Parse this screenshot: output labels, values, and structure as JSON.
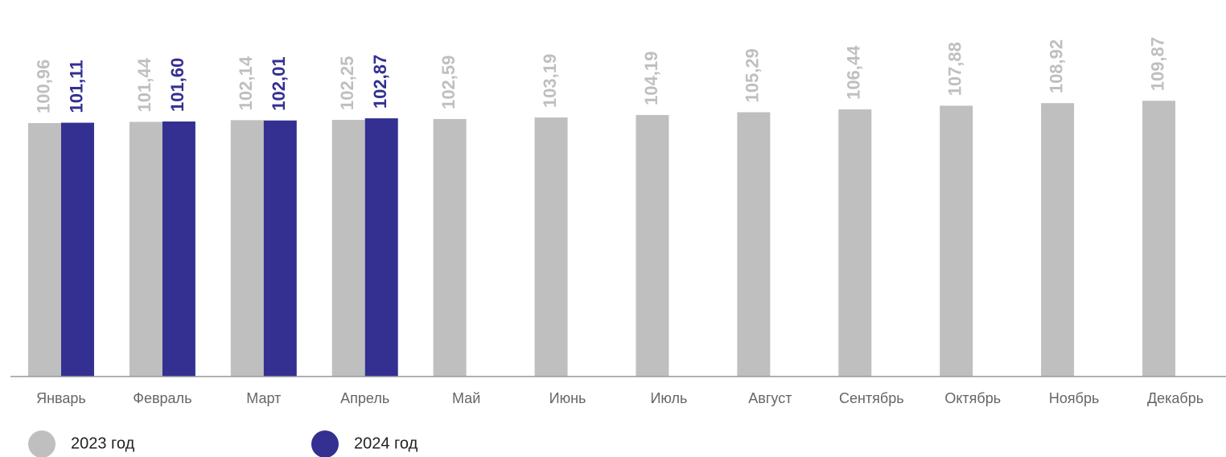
{
  "chart_data": {
    "type": "bar",
    "categories": [
      "Январь",
      "Февраль",
      "Март",
      "Апрель",
      "Май",
      "Июнь",
      "Июль",
      "Август",
      "Сентябрь",
      "Октябрь",
      "Ноябрь",
      "Декабрь"
    ],
    "series": [
      {
        "name": "2023 год",
        "color": "#bfbfbf",
        "values": [
          100.96,
          101.44,
          102.14,
          102.25,
          102.59,
          103.19,
          104.19,
          105.29,
          106.44,
          107.88,
          108.92,
          109.87
        ],
        "value_labels": [
          "100,96",
          "101,44",
          "102,14",
          "102,25",
          "102,59",
          "103,19",
          "104,19",
          "105,29",
          "106,44",
          "107,88",
          "108,92",
          "109,87"
        ]
      },
      {
        "name": "2024 год",
        "color": "#333092",
        "values": [
          101.11,
          101.6,
          102.01,
          102.87,
          null,
          null,
          null,
          null,
          null,
          null,
          null,
          null
        ],
        "value_labels": [
          "101,11",
          "101,60",
          "102,01",
          "102,87",
          null,
          null,
          null,
          null,
          null,
          null,
          null,
          null
        ]
      }
    ],
    "ylim": [
      0,
      150
    ]
  }
}
